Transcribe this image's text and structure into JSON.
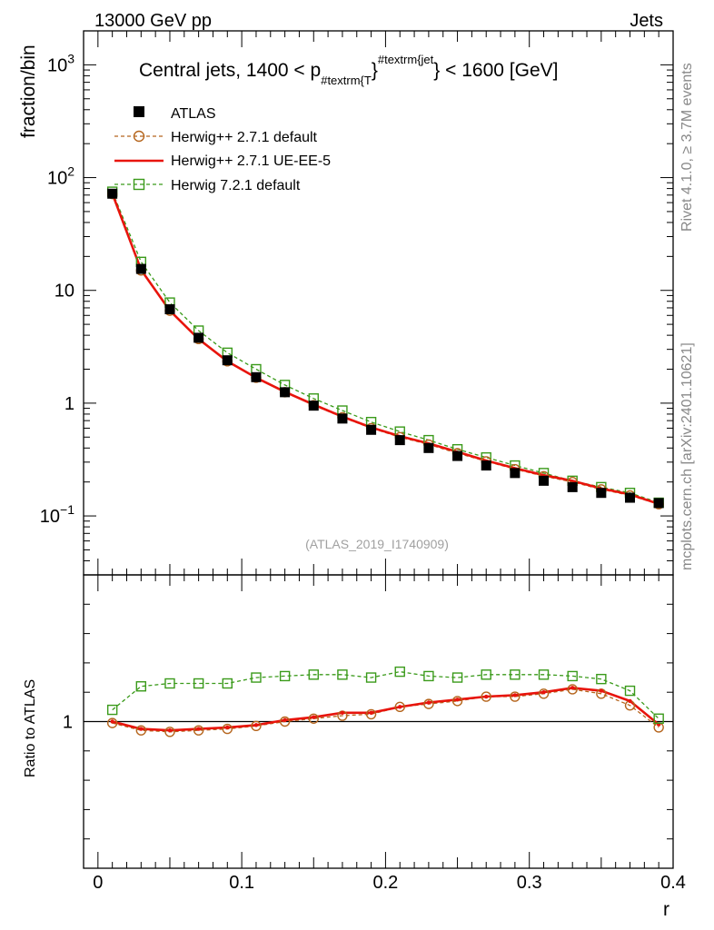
{
  "header": {
    "left": "13000 GeV pp",
    "right": "Jets"
  },
  "side_labels": {
    "rivet": "Rivet 4.1.0, ≥ 3.7M events",
    "mcplots": "mcplots.cern.ch [arXiv:2401.10621]"
  },
  "chart_data": [
    {
      "type": "scatter",
      "panel": "main",
      "title": "Central jets, 1400 < p_{#textrm{T}}^{#textrm{jet}} < 1600 [GeV]",
      "title_parts": {
        "prefix": "Central jets, 1400 < p",
        "sub": "#textrm{T",
        "brace1": "}",
        "sup": "#textrm{jet",
        "suffix": "} < 1600 [GeV]"
      },
      "watermark": "(ATLAS_2019_I1740909)",
      "xlabel": "r",
      "ylabel": "fraction/bin",
      "yscale": "log",
      "xlim": [
        -0.01,
        0.4
      ],
      "ylim": [
        0.03,
        2000
      ],
      "y_ticks": [
        {
          "value": 1000,
          "label": "10",
          "exp": "3"
        },
        {
          "value": 100,
          "label": "10",
          "exp": "2"
        },
        {
          "value": 10,
          "label": "10",
          "exp": ""
        },
        {
          "value": 1,
          "label": "1",
          "exp": ""
        },
        {
          "value": 0.1,
          "label": "10",
          "exp": "−1"
        }
      ],
      "x": [
        0.01,
        0.03,
        0.05,
        0.07,
        0.09,
        0.11,
        0.13,
        0.15,
        0.17,
        0.19,
        0.21,
        0.23,
        0.25,
        0.27,
        0.29,
        0.31,
        0.33,
        0.35,
        0.37,
        0.39
      ],
      "series": [
        {
          "name": "ATLAS",
          "style": "data",
          "color": "#000000",
          "values": [
            72,
            15.5,
            6.8,
            3.8,
            2.4,
            1.7,
            1.25,
            0.95,
            0.73,
            0.58,
            0.47,
            0.4,
            0.34,
            0.28,
            0.24,
            0.205,
            0.18,
            0.16,
            0.145,
            0.13
          ]
        },
        {
          "name": "Herwig++ 2.7.1 default",
          "style": "circle-dashed",
          "color": "#b5651d",
          "values": [
            71.5,
            15.0,
            6.6,
            3.7,
            2.35,
            1.68,
            1.25,
            0.96,
            0.75,
            0.6,
            0.5,
            0.43,
            0.36,
            0.305,
            0.26,
            0.225,
            0.2,
            0.172,
            0.152,
            0.127
          ]
        },
        {
          "name": "Herwig++ 2.7.1 UE-EE-5",
          "style": "line",
          "color": "#e8140c",
          "values": [
            72,
            15.2,
            6.6,
            3.7,
            2.35,
            1.68,
            1.26,
            0.97,
            0.76,
            0.61,
            0.51,
            0.44,
            0.37,
            0.31,
            0.265,
            0.23,
            0.205,
            0.175,
            0.155,
            0.128
          ]
        },
        {
          "name": "Herwig 7.2.1 default",
          "style": "square-dashed",
          "color": "#3a9a1a",
          "values": [
            75,
            17.9,
            7.8,
            4.4,
            2.8,
            2.0,
            1.45,
            1.1,
            0.86,
            0.68,
            0.56,
            0.47,
            0.39,
            0.33,
            0.28,
            0.24,
            0.205,
            0.18,
            0.16,
            0.131
          ]
        }
      ]
    },
    {
      "type": "line",
      "panel": "ratio",
      "ylabel": "Ratio to ATLAS",
      "xlabel": "r",
      "xlim": [
        -0.01,
        0.4
      ],
      "ylim": [
        0.5,
        1.5
      ],
      "x_ticks": [
        {
          "value": 0,
          "label": "0"
        },
        {
          "value": 0.1,
          "label": "0.1"
        },
        {
          "value": 0.2,
          "label": "0.2"
        },
        {
          "value": 0.3,
          "label": "0.3"
        },
        {
          "value": 0.4,
          "label": "0.4"
        }
      ],
      "y_ticks": [
        {
          "value": 1,
          "label": "1"
        }
      ],
      "reference": 1,
      "x": [
        0.01,
        0.03,
        0.05,
        0.07,
        0.09,
        0.11,
        0.13,
        0.15,
        0.17,
        0.19,
        0.21,
        0.23,
        0.25,
        0.27,
        0.29,
        0.31,
        0.33,
        0.35,
        0.37,
        0.39
      ],
      "series": [
        {
          "name": "Herwig++ 2.7.1 default",
          "style": "circle-dashed",
          "color": "#b5651d",
          "values": [
            0.995,
            0.97,
            0.965,
            0.97,
            0.975,
            0.985,
            1.0,
            1.01,
            1.02,
            1.025,
            1.05,
            1.06,
            1.07,
            1.085,
            1.085,
            1.095,
            1.11,
            1.095,
            1.055,
            0.98
          ]
        },
        {
          "name": "Herwig++ 2.7.1 UE-EE-5",
          "style": "line",
          "color": "#e8140c",
          "values": [
            1.0,
            0.975,
            0.97,
            0.975,
            0.98,
            0.988,
            1.005,
            1.015,
            1.03,
            1.03,
            1.05,
            1.065,
            1.075,
            1.085,
            1.09,
            1.1,
            1.115,
            1.105,
            1.07,
            0.99
          ]
        },
        {
          "name": "Herwig 7.2.1 default",
          "style": "square-dashed",
          "color": "#3a9a1a",
          "values": [
            1.04,
            1.12,
            1.13,
            1.13,
            1.13,
            1.15,
            1.155,
            1.16,
            1.16,
            1.15,
            1.17,
            1.155,
            1.15,
            1.16,
            1.16,
            1.16,
            1.155,
            1.145,
            1.105,
            1.01
          ]
        }
      ]
    }
  ]
}
